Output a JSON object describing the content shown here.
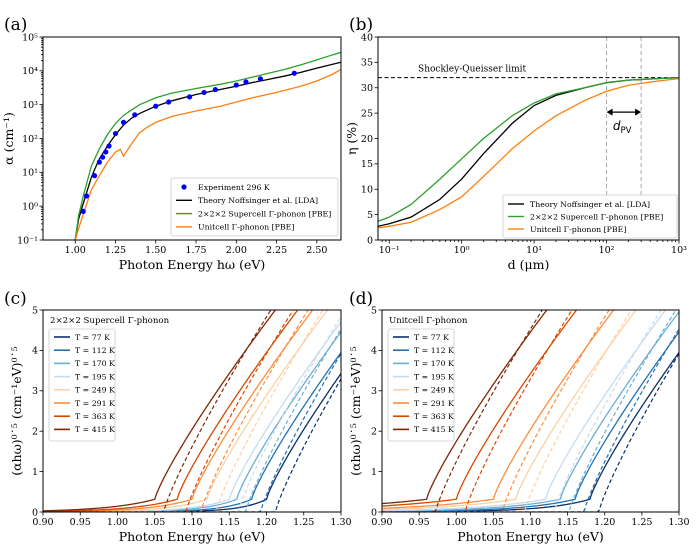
{
  "chart_data": [
    {
      "id": "a",
      "panel_label": "(a)",
      "type": "line",
      "xlabel": "Photon Energy hω (eV)",
      "ylabel": "α (cm⁻¹)",
      "xlim": [
        0.8,
        2.65
      ],
      "ylim": [
        0.1,
        100000
      ],
      "yscale": "log",
      "xticks": [
        1.0,
        1.25,
        1.5,
        1.75,
        2.0,
        2.25,
        2.5
      ],
      "xtick_labels": [
        "1.00",
        "1.25",
        "1.50",
        "1.75",
        "2.00",
        "2.25",
        "2.50"
      ],
      "yticks": [
        0.1,
        1,
        10,
        100,
        1000,
        10000,
        100000
      ],
      "ytick_labels": [
        "10⁻¹",
        "10⁰",
        "10¹",
        "10²",
        "10³",
        "10⁴",
        "10⁵"
      ],
      "legend_position": "lower-right",
      "series": [
        {
          "name": "Experiment 296 K",
          "kind": "scatter",
          "color": "#0000ff",
          "x": [
            1.05,
            1.07,
            1.12,
            1.15,
            1.17,
            1.19,
            1.21,
            1.25,
            1.3,
            1.37,
            1.5,
            1.58,
            1.71,
            1.8,
            1.87,
            2.0,
            2.06,
            2.15,
            2.36
          ],
          "y": [
            0.7,
            2.0,
            8,
            20,
            28,
            40,
            60,
            140,
            300,
            500,
            900,
            1200,
            1700,
            2300,
            2800,
            3800,
            4700,
            5800,
            8500
          ]
        },
        {
          "name": "Theory Noffsinger et al. [LDA]",
          "kind": "line",
          "color": "#000000",
          "x": [
            1.0,
            1.02,
            1.05,
            1.08,
            1.1,
            1.12,
            1.15,
            1.2,
            1.25,
            1.3,
            1.35,
            1.4,
            1.5,
            1.6,
            1.75,
            1.9,
            2.0,
            2.1,
            2.2,
            2.3,
            2.4,
            2.5,
            2.65
          ],
          "y": [
            0.1,
            0.4,
            1.2,
            3.5,
            7,
            12,
            25,
            60,
            130,
            250,
            400,
            550,
            900,
            1300,
            2000,
            2800,
            3500,
            4500,
            5600,
            7000,
            9000,
            12000,
            18000
          ]
        },
        {
          "name": "2×2×2 Supercell Γ-phonon [PBE]",
          "kind": "line",
          "color": "#2ca02c",
          "x": [
            1.0,
            1.02,
            1.05,
            1.1,
            1.15,
            1.2,
            1.25,
            1.3,
            1.35,
            1.4,
            1.5,
            1.6,
            1.75,
            1.9,
            2.0,
            2.1,
            2.2,
            2.3,
            2.4,
            2.5,
            2.6,
            2.65
          ],
          "y": [
            0.1,
            0.5,
            2.0,
            15,
            50,
            130,
            280,
            480,
            700,
            1000,
            1600,
            2200,
            3000,
            4000,
            5000,
            6500,
            8500,
            11000,
            15000,
            21000,
            30000,
            35000
          ]
        },
        {
          "name": "Unitcell Γ-phonon [PBE]",
          "kind": "line",
          "color": "#ff7f0e",
          "x": [
            1.0,
            1.03,
            1.06,
            1.1,
            1.15,
            1.2,
            1.25,
            1.28,
            1.3,
            1.35,
            1.4,
            1.45,
            1.5,
            1.6,
            1.75,
            1.9,
            2.0,
            2.1,
            2.25,
            2.4,
            2.5,
            2.6,
            2.65
          ],
          "y": [
            0.1,
            0.3,
            0.8,
            3,
            8,
            20,
            40,
            48,
            30,
            70,
            150,
            220,
            300,
            450,
            650,
            900,
            1200,
            1600,
            2300,
            3500,
            5000,
            8000,
            11000
          ]
        }
      ]
    },
    {
      "id": "b",
      "panel_label": "(b)",
      "type": "line",
      "xlabel": "d (μm)",
      "ylabel": "η (%)",
      "xlim": [
        0.07,
        1000
      ],
      "xscale": "log",
      "ylim": [
        0,
        40
      ],
      "xticks": [
        0.1,
        1,
        10,
        100,
        1000
      ],
      "xtick_labels": [
        "10⁻¹",
        "10⁰",
        "10¹",
        "10²",
        "10³"
      ],
      "yticks": [
        0,
        5,
        10,
        15,
        20,
        25,
        30,
        35,
        40
      ],
      "ytick_labels": [
        "0",
        "5",
        "10",
        "15",
        "20",
        "25",
        "30",
        "35",
        "40"
      ],
      "legend_position": "lower-right",
      "annotations": {
        "sq_label": "Shockley-Queisser limit",
        "sq_value": 32,
        "dpv_label": "d",
        "dpv_sub": "PV",
        "vlines": [
          100,
          300
        ]
      },
      "series": [
        {
          "name": "Theory Noffsinger et al. [LDA]",
          "color": "#000000",
          "x": [
            0.07,
            0.1,
            0.2,
            0.5,
            1,
            2,
            5,
            10,
            20,
            50,
            100,
            200,
            500,
            1000
          ],
          "y": [
            2.7,
            3.2,
            4.5,
            8,
            12,
            17,
            23,
            26.5,
            28.5,
            30,
            31,
            31.5,
            31.8,
            32
          ]
        },
        {
          "name": "2×2×2 Supercell Γ-phonon [PBE]",
          "color": "#2ca02c",
          "x": [
            0.07,
            0.1,
            0.2,
            0.5,
            1,
            2,
            5,
            10,
            20,
            50,
            100,
            200,
            500,
            1000
          ],
          "y": [
            3.7,
            4.5,
            7,
            12,
            16,
            20,
            24.5,
            27,
            28.8,
            30,
            31,
            31.5,
            31.8,
            32
          ]
        },
        {
          "name": "Unitcell Γ-phonon [PBE]",
          "color": "#ff7f0e",
          "x": [
            0.07,
            0.1,
            0.2,
            0.5,
            1,
            2,
            5,
            10,
            20,
            50,
            100,
            200,
            500,
            1000
          ],
          "y": [
            2.4,
            2.7,
            3.5,
            6,
            8.5,
            12.5,
            18,
            21.5,
            24.5,
            27.5,
            29.3,
            30.5,
            31.3,
            31.8
          ]
        }
      ]
    },
    {
      "id": "c",
      "panel_label": "(c)",
      "type": "line",
      "inner_title": "2×2×2 Supercell Γ-phonon",
      "xlabel": "Photon Energy hω (eV)",
      "ylabel": "(αhω)⁰˙⁵ (cm⁻¹eV)⁰˙⁵",
      "xlim": [
        0.9,
        1.3
      ],
      "ylim": [
        0,
        5
      ],
      "xticks": [
        0.9,
        0.95,
        1.0,
        1.05,
        1.1,
        1.15,
        1.2,
        1.25,
        1.3
      ],
      "xtick_labels": [
        "0.90",
        "0.95",
        "1.00",
        "1.05",
        "1.10",
        "1.15",
        "1.20",
        "1.25",
        "1.30"
      ],
      "yticks": [
        0,
        1,
        2,
        3,
        4,
        5
      ],
      "ytick_labels": [
        "0",
        "1",
        "2",
        "3",
        "4",
        "5"
      ],
      "legend_position": "upper-left",
      "onsets": [
        1.2,
        1.18,
        1.16,
        1.15,
        1.12,
        1.1,
        1.08,
        1.05
      ],
      "series": [
        {
          "name": "T = 77 K",
          "color": "#08306b"
        },
        {
          "name": "T = 112 K",
          "color": "#2171b5"
        },
        {
          "name": "T = 170 K",
          "color": "#6baed6"
        },
        {
          "name": "T = 195 K",
          "color": "#c6dbef"
        },
        {
          "name": "T = 249 K",
          "color": "#fdd0a2"
        },
        {
          "name": "T = 291 K",
          "color": "#fd8d3c"
        },
        {
          "name": "T = 363 K",
          "color": "#d94801"
        },
        {
          "name": "T = 415 K",
          "color": "#7f2704"
        }
      ]
    },
    {
      "id": "d",
      "panel_label": "(d)",
      "type": "line",
      "inner_title": "Unitcell Γ-phonon",
      "xlabel": "Photon Energy hω (eV)",
      "ylabel": "(αhω)⁰˙⁵ (cm⁻¹eV)⁰˙⁵",
      "xlim": [
        0.9,
        1.3
      ],
      "ylim": [
        0,
        5
      ],
      "xticks": [
        0.9,
        0.95,
        1.0,
        1.05,
        1.1,
        1.15,
        1.2,
        1.25,
        1.3
      ],
      "xtick_labels": [
        "0.90",
        "0.95",
        "1.00",
        "1.05",
        "1.10",
        "1.15",
        "1.20",
        "1.25",
        "1.30"
      ],
      "yticks": [
        0,
        1,
        2,
        3,
        4,
        5
      ],
      "ytick_labels": [
        "0",
        "1",
        "2",
        "3",
        "4",
        "5"
      ],
      "legend_position": "upper-left",
      "onsets": [
        1.18,
        1.16,
        1.14,
        1.12,
        1.08,
        1.05,
        1.0,
        0.96
      ],
      "series": [
        {
          "name": "T = 77 K",
          "color": "#08306b"
        },
        {
          "name": "T = 112 K",
          "color": "#2171b5"
        },
        {
          "name": "T = 170 K",
          "color": "#6baed6"
        },
        {
          "name": "T = 195 K",
          "color": "#c6dbef"
        },
        {
          "name": "T = 249 K",
          "color": "#fdd0a2"
        },
        {
          "name": "T = 291 K",
          "color": "#fd8d3c"
        },
        {
          "name": "T = 363 K",
          "color": "#d94801"
        },
        {
          "name": "T = 415 K",
          "color": "#7f2704"
        }
      ]
    }
  ]
}
